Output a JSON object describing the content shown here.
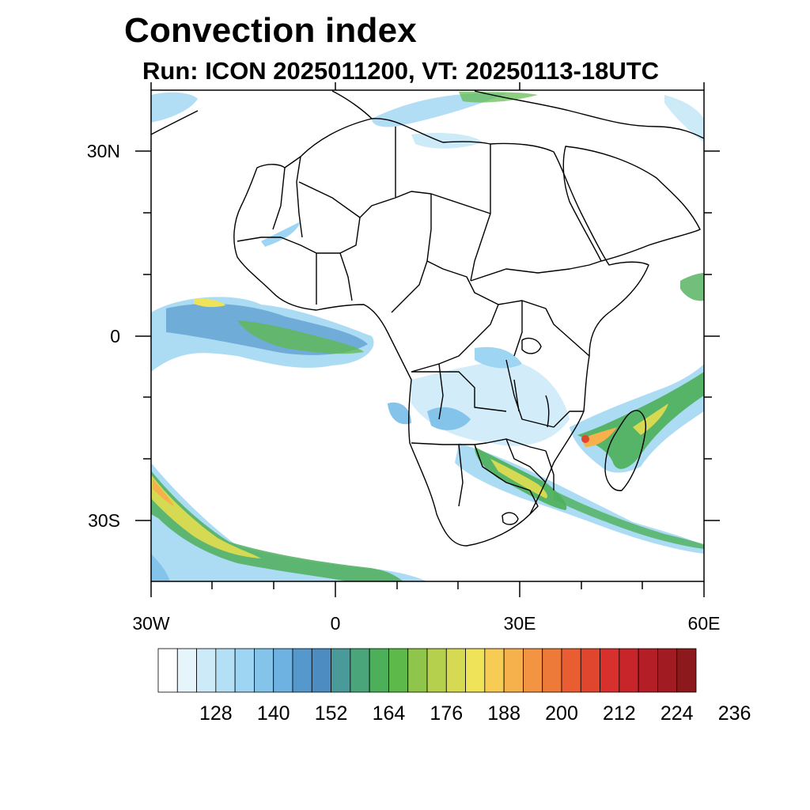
{
  "title": "Convection index",
  "subtitle": "Run: ICON 2025011200,  VT: 20250113-18UTC",
  "axes": {
    "lat_labels": [
      "30N",
      "0",
      "30S"
    ],
    "lon_labels": [
      "30W",
      "0",
      "30E",
      "60E"
    ]
  },
  "colorbar": {
    "tick_labels": [
      "128",
      "140",
      "152",
      "164",
      "176",
      "188",
      "200",
      "212",
      "224",
      "236"
    ],
    "colors": [
      "#ffffff",
      "#e6f4fb",
      "#cdeaf8",
      "#b4e0f5",
      "#9dd5f2",
      "#85c4ea",
      "#6eb2e2",
      "#5598cc",
      "#4d8cc0",
      "#4a9a9a",
      "#4aa57a",
      "#4daf5a",
      "#5db94a",
      "#8fc54b",
      "#b5d04d",
      "#d6da52",
      "#efe35a",
      "#f6cc55",
      "#f6b04c",
      "#f39443",
      "#ee7a3a",
      "#e85e32",
      "#e0452e",
      "#d8302c",
      "#c8252a",
      "#b41e26",
      "#a01b22",
      "#8c1a1c"
    ]
  },
  "map": {
    "background": "#ffffff",
    "border_color": "#000000"
  }
}
